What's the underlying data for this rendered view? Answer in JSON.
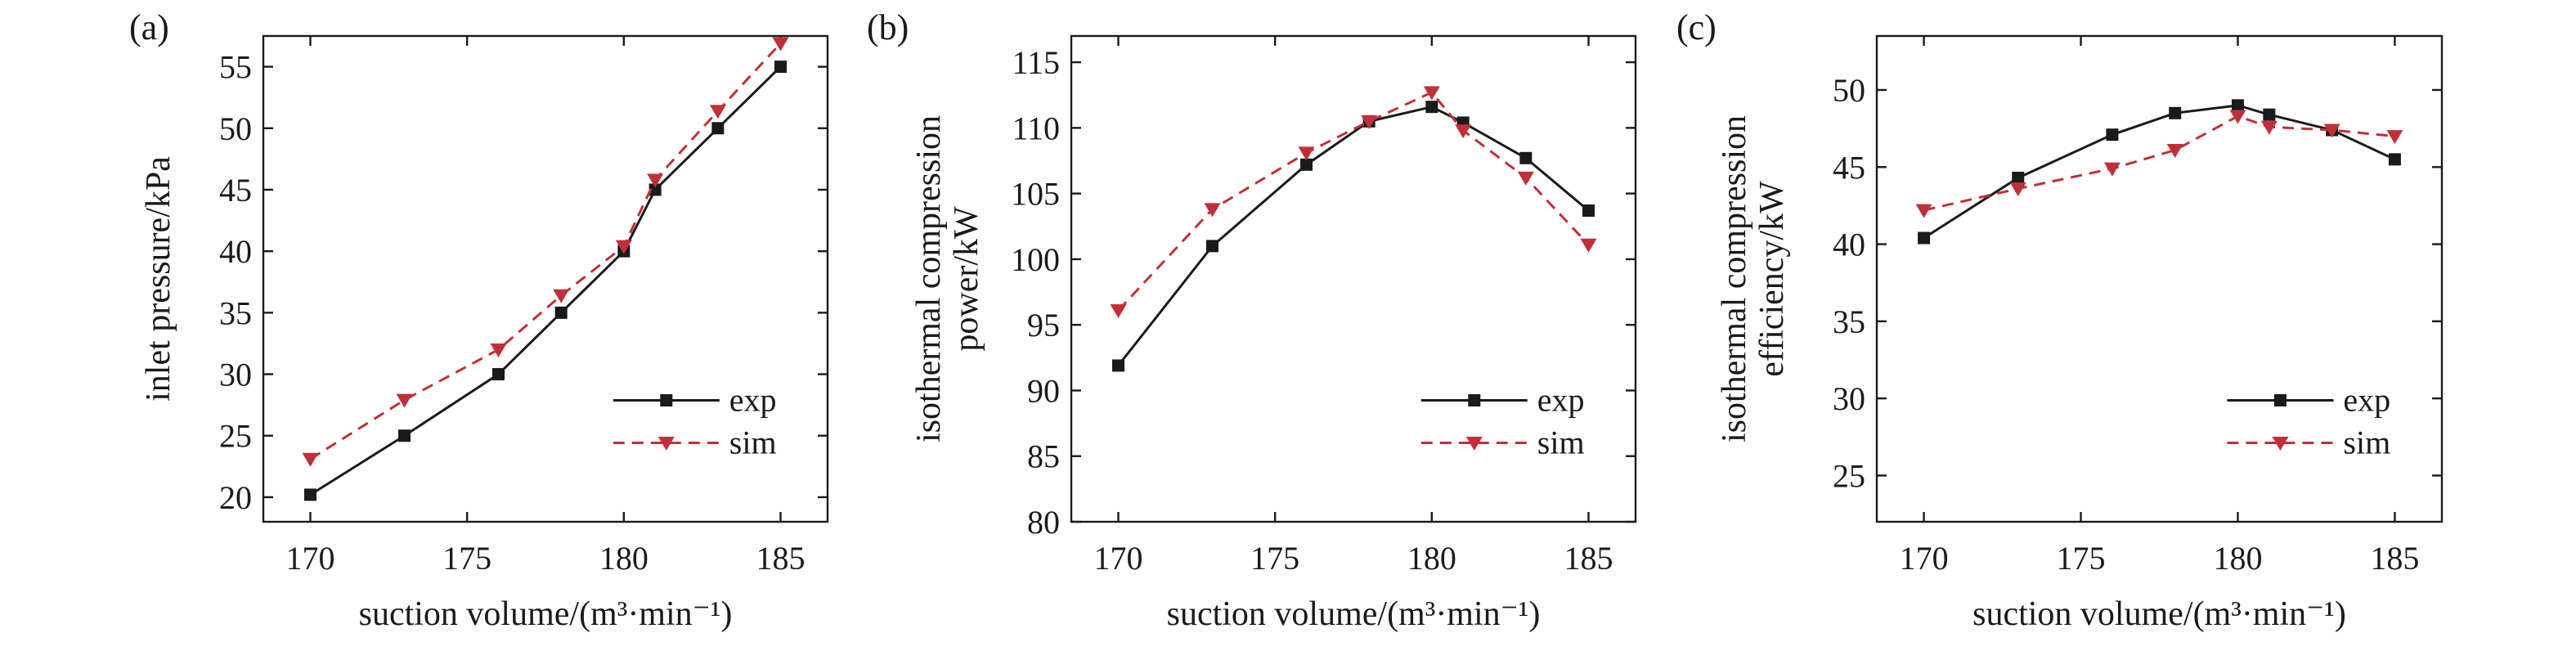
{
  "chart_data": [
    {
      "type": "line",
      "panel_label": "(a)",
      "xlabel": "suction volume/(m³·min⁻¹)",
      "ylabel": "inlet pressure/kPa",
      "ylabel_lines": [
        "inlet pressure/kPa"
      ],
      "xlim": [
        168.5,
        186.5
      ],
      "ylim": [
        18,
        57.5
      ],
      "xticks": [
        170,
        175,
        180,
        185
      ],
      "yticks": [
        20,
        25,
        30,
        35,
        40,
        45,
        50,
        55
      ],
      "legend": "bottom-right",
      "grid": false,
      "series": [
        {
          "name": "exp",
          "color": "#1a1a1a",
          "marker": "square",
          "dash": "solid",
          "x": [
            170,
            173,
            176,
            178,
            180,
            181,
            183,
            185
          ],
          "y": [
            20.2,
            25.0,
            30.0,
            35.0,
            40.0,
            45.0,
            50.0,
            55.0
          ]
        },
        {
          "name": "sim",
          "color": "#c0303a",
          "marker": "triangle-down",
          "dash": "dashed",
          "x": [
            170,
            173,
            176,
            178,
            180,
            181,
            183,
            185
          ],
          "y": [
            23.1,
            27.9,
            32.0,
            36.4,
            40.4,
            45.8,
            51.4,
            56.9
          ]
        }
      ]
    },
    {
      "type": "line",
      "panel_label": "(b)",
      "xlabel": "suction volume/(m³·min⁻¹)",
      "ylabel": "isothermal compression power/kW",
      "ylabel_lines": [
        "isothermal compression",
        "power/kW"
      ],
      "xlim": [
        168.5,
        186.5
      ],
      "ylim": [
        80,
        117
      ],
      "xticks": [
        170,
        175,
        180,
        185
      ],
      "yticks": [
        80,
        85,
        90,
        95,
        100,
        105,
        110,
        115
      ],
      "legend": "bottom-right",
      "grid": false,
      "series": [
        {
          "name": "exp",
          "color": "#1a1a1a",
          "marker": "square",
          "dash": "solid",
          "x": [
            170,
            173,
            176,
            178,
            180,
            181,
            183,
            185
          ],
          "y": [
            91.9,
            101.0,
            107.2,
            110.5,
            111.6,
            110.4,
            107.7,
            103.7
          ]
        },
        {
          "name": "sim",
          "color": "#c0303a",
          "marker": "triangle-down",
          "dash": "dashed",
          "x": [
            170,
            173,
            176,
            178,
            180,
            181,
            183,
            185
          ],
          "y": [
            96.1,
            103.8,
            108.1,
            110.5,
            112.7,
            109.8,
            106.2,
            101.1
          ]
        }
      ]
    },
    {
      "type": "line",
      "panel_label": "(c)",
      "xlabel": "suction volume/(m³·min⁻¹)",
      "ylabel": "isothermal compression efficiency/kW",
      "ylabel_lines": [
        "isothermal compression",
        "efficiency/kW"
      ],
      "xlim": [
        168.5,
        186.5
      ],
      "ylim": [
        22,
        53.5
      ],
      "xticks": [
        170,
        175,
        180,
        185
      ],
      "yticks": [
        25,
        30,
        35,
        40,
        45,
        50
      ],
      "legend": "bottom-right",
      "grid": false,
      "series": [
        {
          "name": "exp",
          "color": "#1a1a1a",
          "marker": "square",
          "dash": "solid",
          "x": [
            170,
            173,
            176,
            178,
            180,
            181,
            183,
            185
          ],
          "y": [
            40.4,
            44.3,
            47.1,
            48.5,
            49.0,
            48.4,
            47.4,
            45.5
          ]
        },
        {
          "name": "sim",
          "color": "#c0303a",
          "marker": "triangle-down",
          "dash": "dashed",
          "x": [
            170,
            173,
            176,
            178,
            180,
            181,
            183,
            185
          ],
          "y": [
            42.2,
            43.6,
            44.9,
            46.1,
            48.3,
            47.6,
            47.4,
            47.0
          ]
        }
      ]
    }
  ]
}
